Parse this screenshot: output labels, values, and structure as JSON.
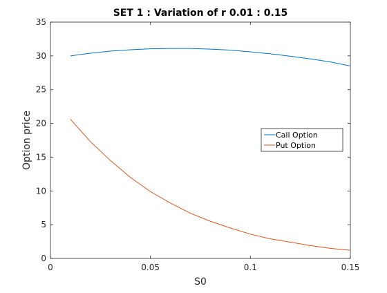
{
  "chart_data": {
    "type": "line",
    "title": "SET 1 : Variation of r 0.01 : 0.15",
    "xlabel": "S0",
    "ylabel": "Option price",
    "xlim": [
      0,
      0.15
    ],
    "ylim": [
      0,
      35
    ],
    "xticks": [
      0,
      0.05,
      0.1,
      0.15
    ],
    "xtick_labels": [
      "0",
      "0.05",
      "0.1",
      "0.15"
    ],
    "yticks": [
      0,
      5,
      10,
      15,
      20,
      25,
      30,
      35
    ],
    "ytick_labels": [
      "0",
      "5",
      "10",
      "15",
      "20",
      "25",
      "30",
      "35"
    ],
    "grid": false,
    "legend_position": "right",
    "x": [
      0.01,
      0.02,
      0.03,
      0.04,
      0.05,
      0.06,
      0.07,
      0.08,
      0.09,
      0.1,
      0.11,
      0.12,
      0.13,
      0.14,
      0.15
    ],
    "series": [
      {
        "name": "Call Option",
        "color": "#0072BD",
        "values": [
          30.0,
          30.4,
          30.7,
          30.9,
          31.05,
          31.1,
          31.1,
          31.0,
          30.85,
          30.6,
          30.3,
          29.95,
          29.55,
          29.1,
          28.5
        ]
      },
      {
        "name": "Put Option",
        "color": "#D95319",
        "values": [
          20.6,
          17.3,
          14.5,
          12.0,
          9.9,
          8.2,
          6.7,
          5.5,
          4.5,
          3.6,
          2.9,
          2.4,
          1.9,
          1.5,
          1.2
        ]
      }
    ]
  }
}
